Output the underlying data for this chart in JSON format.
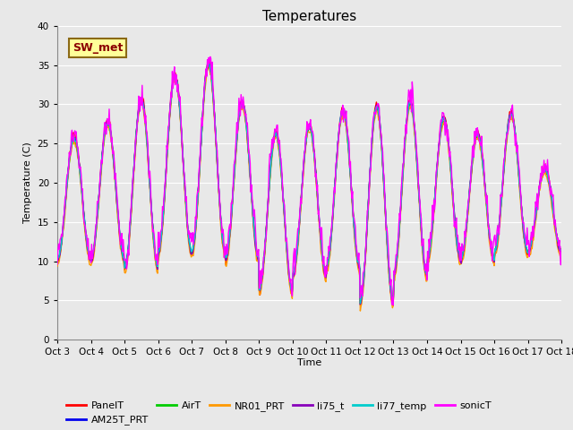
{
  "title": "Temperatures",
  "ylabel": "Temperature (C)",
  "xlabel": "Time",
  "ylim": [
    0,
    40
  ],
  "yticks": [
    0,
    5,
    10,
    15,
    20,
    25,
    30,
    35,
    40
  ],
  "xtick_labels": [
    "Oct 3",
    "Oct 4",
    "Oct 5",
    "Oct 6",
    "Oct 7",
    "Oct 8",
    "Oct 9",
    "Oct 10",
    "Oct 11",
    "Oct 12",
    "Oct 13",
    "Oct 14",
    "Oct 15",
    "Oct 16",
    "Oct 17",
    "Oct 18"
  ],
  "annotation_text": "SW_met",
  "annotation_color": "#8B0000",
  "annotation_bg": "#FFFF99",
  "annotation_border": "#8B6914",
  "series_order": [
    "PanelT",
    "AM25T_PRT",
    "AirT",
    "NR01_PRT",
    "li75_t",
    "li77_temp",
    "sonicT"
  ],
  "series": {
    "PanelT": {
      "color": "#FF0000",
      "lw": 1.0
    },
    "AM25T_PRT": {
      "color": "#0000EE",
      "lw": 1.0
    },
    "AirT": {
      "color": "#00CC00",
      "lw": 1.0
    },
    "NR01_PRT": {
      "color": "#FF9900",
      "lw": 1.0
    },
    "li75_t": {
      "color": "#8800BB",
      "lw": 1.0
    },
    "li77_temp": {
      "color": "#00CCCC",
      "lw": 1.0
    },
    "sonicT": {
      "color": "#FF00FF",
      "lw": 1.0
    }
  },
  "background_color": "#E8E8E8",
  "fig_facecolor": "#E8E8E8",
  "grid_color": "#FFFFFF",
  "title_fontsize": 11,
  "day_peaks": [
    26,
    28,
    31,
    34,
    35.5,
    30.5,
    26.5,
    27.5,
    29.5,
    30,
    30.5,
    28.5,
    26.5,
    29,
    22
  ],
  "day_mins": [
    10,
    10,
    9,
    11,
    11,
    10,
    6,
    8,
    9,
    4.5,
    8,
    10,
    10,
    11,
    11
  ]
}
